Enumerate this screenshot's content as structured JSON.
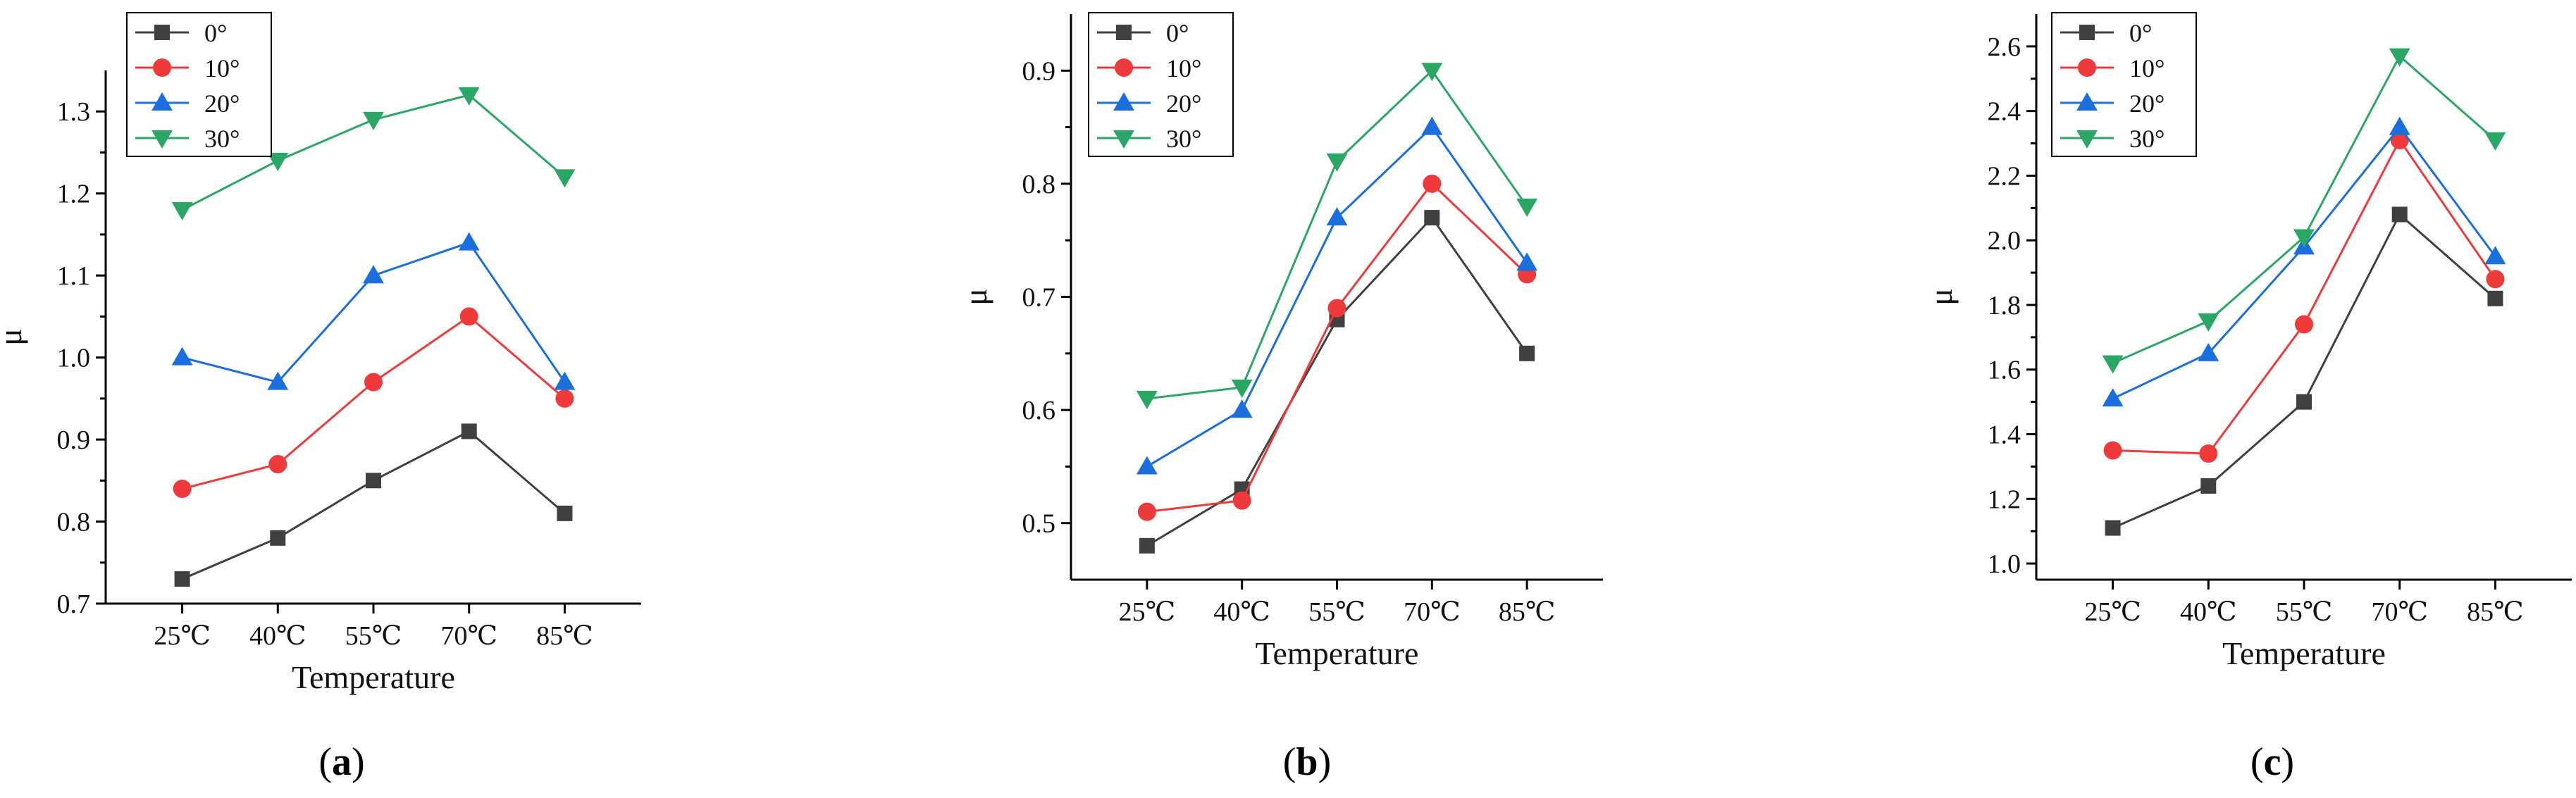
{
  "chart_data": [
    {
      "type": "line",
      "panel_label": "a",
      "xlabel": "Temperature",
      "ylabel": "μ",
      "categories": [
        "25℃",
        "40℃",
        "55℃",
        "70℃",
        "85℃"
      ],
      "ylim": [
        0.7,
        1.35
      ],
      "yticks": [
        0.7,
        0.8,
        0.9,
        1.0,
        1.1,
        1.2,
        1.3
      ],
      "ytick_decimals": 1,
      "legend_position": "top-left",
      "series": [
        {
          "name": "0°",
          "marker": "square",
          "color": "#404040",
          "values": [
            0.73,
            0.78,
            0.85,
            0.91,
            0.81
          ]
        },
        {
          "name": "10°",
          "marker": "circle",
          "color": "#ee3a3a",
          "values": [
            0.84,
            0.87,
            0.97,
            1.05,
            0.95
          ]
        },
        {
          "name": "20°",
          "marker": "triangle-up",
          "color": "#1a6fdd",
          "values": [
            1.0,
            0.97,
            1.1,
            1.14,
            0.97
          ]
        },
        {
          "name": "30°",
          "marker": "triangle-down",
          "color": "#2aa764",
          "values": [
            1.18,
            1.24,
            1.29,
            1.32,
            1.22
          ]
        }
      ]
    },
    {
      "type": "line",
      "panel_label": "b",
      "xlabel": "Temperature",
      "ylabel": "μ",
      "categories": [
        "25℃",
        "40℃",
        "55℃",
        "70℃",
        "85℃"
      ],
      "ylim": [
        0.45,
        0.95
      ],
      "yticks": [
        0.5,
        0.6,
        0.7,
        0.8,
        0.9
      ],
      "ytick_decimals": 1,
      "legend_position": "top-left",
      "series": [
        {
          "name": "0°",
          "marker": "square",
          "color": "#404040",
          "values": [
            0.48,
            0.53,
            0.68,
            0.77,
            0.65
          ]
        },
        {
          "name": "10°",
          "marker": "circle",
          "color": "#ee3a3a",
          "values": [
            0.51,
            0.52,
            0.69,
            0.8,
            0.72
          ]
        },
        {
          "name": "20°",
          "marker": "triangle-up",
          "color": "#1a6fdd",
          "values": [
            0.55,
            0.6,
            0.77,
            0.85,
            0.73
          ]
        },
        {
          "name": "30°",
          "marker": "triangle-down",
          "color": "#2aa764",
          "values": [
            0.61,
            0.62,
            0.82,
            0.9,
            0.78
          ]
        }
      ]
    },
    {
      "type": "line",
      "panel_label": "c",
      "xlabel": "Temperature",
      "ylabel": "μ",
      "categories": [
        "25℃",
        "40℃",
        "55℃",
        "70℃",
        "85℃"
      ],
      "ylim": [
        0.95,
        2.7
      ],
      "yticks": [
        1.0,
        1.2,
        1.4,
        1.6,
        1.8,
        2.0,
        2.2,
        2.4,
        2.6
      ],
      "ytick_decimals": 1,
      "legend_position": "top-left",
      "series": [
        {
          "name": "0°",
          "marker": "square",
          "color": "#404040",
          "values": [
            1.11,
            1.24,
            1.5,
            2.08,
            1.82
          ]
        },
        {
          "name": "10°",
          "marker": "circle",
          "color": "#ee3a3a",
          "values": [
            1.35,
            1.34,
            1.74,
            2.31,
            1.88
          ]
        },
        {
          "name": "20°",
          "marker": "triangle-up",
          "color": "#1a6fdd",
          "values": [
            1.51,
            1.65,
            1.98,
            2.35,
            1.95
          ]
        },
        {
          "name": "30°",
          "marker": "triangle-down",
          "color": "#2aa764",
          "values": [
            1.62,
            1.75,
            2.01,
            2.57,
            2.31
          ]
        }
      ]
    }
  ]
}
